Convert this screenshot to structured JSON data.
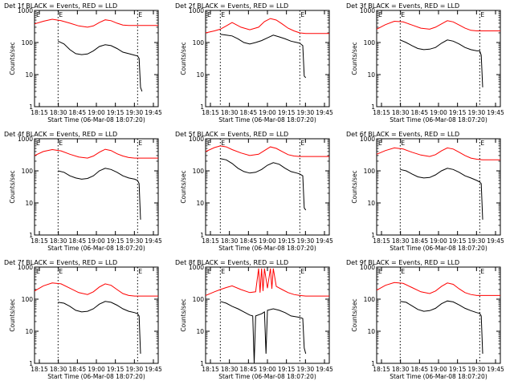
{
  "colors": {
    "events": "#000000",
    "lld": "#ff0000",
    "axis": "#000000",
    "marker": "#000000"
  },
  "chart_data": [
    {
      "type": "line",
      "title": "Det 1f BLACK = Events, RED = LLD",
      "xlabel": "Start Time (06-Mar-08 18:07:20)",
      "ylabel": "Counts/sec",
      "xtick_labels": [
        "18:15",
        "18:30",
        "18:45",
        "19:00",
        "19:15",
        "19:30",
        "19:45"
      ],
      "ytick_labels": [
        "1",
        "10",
        "100",
        "1000"
      ],
      "xlim": [
        0,
        42
      ],
      "ylim": [
        1,
        1000
      ],
      "yscale": "log",
      "marker_label": "E",
      "markers": [
        8,
        35
      ],
      "series": [
        {
          "color": "red",
          "x": [
            0,
            3,
            6,
            9,
            12,
            15,
            18,
            20,
            22,
            24,
            26,
            28,
            30,
            32,
            34,
            36,
            38,
            40,
            42
          ],
          "y": [
            380,
            460,
            530,
            480,
            400,
            330,
            300,
            330,
            420,
            510,
            480,
            400,
            350,
            340,
            340,
            340,
            340,
            340,
            340
          ]
        },
        {
          "color": "black",
          "x": [
            8,
            10,
            12,
            14,
            16,
            18,
            20,
            22,
            24,
            26,
            28,
            30,
            32,
            34,
            35,
            35.5,
            36,
            36.5
          ],
          "y": [
            110,
            90,
            60,
            45,
            42,
            44,
            55,
            75,
            85,
            80,
            65,
            50,
            45,
            40,
            38,
            32,
            4,
            3
          ]
        }
      ]
    },
    {
      "type": "line",
      "title": "Det 2f BLACK = Events, RED = LLD",
      "xlabel": "Start Time (06-Mar-08 18:07:20)",
      "ylabel": "Counts/sec",
      "xtick_labels": [
        "18:15",
        "18:30",
        "18:45",
        "19:00",
        "19:15",
        "19:30",
        "19:45"
      ],
      "ytick_labels": [
        "1",
        "10",
        "100",
        "1000"
      ],
      "xlim": [
        0,
        42
      ],
      "ylim": [
        1,
        1000
      ],
      "yscale": "log",
      "marker_label": "E",
      "markers": [
        5,
        32
      ],
      "series": [
        {
          "color": "red",
          "x": [
            0,
            3,
            5,
            7,
            9,
            12,
            15,
            18,
            20,
            22,
            24,
            26,
            28,
            30,
            32,
            34,
            36,
            38,
            40,
            42
          ],
          "y": [
            200,
            230,
            260,
            330,
            420,
            300,
            250,
            300,
            450,
            560,
            500,
            380,
            280,
            230,
            200,
            190,
            190,
            190,
            190,
            190
          ]
        },
        {
          "color": "black",
          "x": [
            5,
            7,
            9,
            11,
            13,
            15,
            17,
            19,
            21,
            23,
            25,
            27,
            29,
            31,
            32,
            33,
            33.5,
            34
          ],
          "y": [
            180,
            170,
            160,
            130,
            100,
            90,
            100,
            115,
            140,
            170,
            150,
            130,
            110,
            100,
            95,
            80,
            9,
            8
          ]
        }
      ]
    },
    {
      "type": "line",
      "title": "Det 3f BLACK = Events, RED = LLD",
      "xlabel": "Start Time (06-Mar-08 18:07:20)",
      "ylabel": "Counts/sec",
      "xtick_labels": [
        "18:15",
        "18:30",
        "18:45",
        "19:00",
        "19:15",
        "19:30",
        "19:45"
      ],
      "ytick_labels": [
        "1",
        "10",
        "100",
        "1000"
      ],
      "xlim": [
        0,
        42
      ],
      "ylim": [
        1,
        1000
      ],
      "yscale": "log",
      "marker_label": "E",
      "markers": [
        8,
        35
      ],
      "series": [
        {
          "color": "red",
          "x": [
            0,
            3,
            6,
            9,
            12,
            15,
            18,
            20,
            22,
            24,
            26,
            28,
            30,
            32,
            34,
            36,
            38,
            40,
            42
          ],
          "y": [
            260,
            360,
            460,
            440,
            350,
            280,
            260,
            300,
            380,
            480,
            440,
            350,
            280,
            240,
            230,
            230,
            230,
            230,
            230
          ]
        },
        {
          "color": "black",
          "x": [
            8,
            10,
            12,
            14,
            16,
            18,
            20,
            22,
            24,
            26,
            28,
            30,
            32,
            34,
            35,
            35.5,
            36
          ],
          "y": [
            120,
            100,
            80,
            65,
            60,
            62,
            70,
            95,
            120,
            110,
            90,
            70,
            60,
            55,
            55,
            40,
            4
          ]
        }
      ]
    },
    {
      "type": "line",
      "title": "Det 4f BLACK = Events, RED = LLD",
      "xlabel": "Start Time (06-Mar-08 18:07:20)",
      "ylabel": "Counts/sec",
      "xtick_labels": [
        "18:15",
        "18:30",
        "18:45",
        "19:00",
        "19:15",
        "19:30",
        "19:45"
      ],
      "ytick_labels": [
        "1",
        "10",
        "100",
        "1000"
      ],
      "xlim": [
        0,
        42
      ],
      "ylim": [
        1,
        1000
      ],
      "yscale": "log",
      "marker_label": "E",
      "markers": [
        8,
        35
      ],
      "series": [
        {
          "color": "red",
          "x": [
            0,
            3,
            6,
            9,
            12,
            15,
            18,
            20,
            22,
            24,
            26,
            28,
            30,
            32,
            34,
            36,
            38,
            40,
            42
          ],
          "y": [
            300,
            400,
            460,
            420,
            330,
            270,
            250,
            290,
            380,
            470,
            430,
            340,
            290,
            260,
            250,
            250,
            250,
            250,
            250
          ]
        },
        {
          "color": "black",
          "x": [
            8,
            10,
            12,
            14,
            16,
            18,
            20,
            22,
            24,
            26,
            28,
            30,
            32,
            34,
            35,
            35.5,
            36
          ],
          "y": [
            100,
            90,
            70,
            60,
            55,
            58,
            70,
            100,
            120,
            110,
            90,
            70,
            60,
            55,
            50,
            40,
            3
          ]
        }
      ]
    },
    {
      "type": "line",
      "title": "Det 5f BLACK = Events, RED = LLD",
      "xlabel": "Start Time (06-Mar-08 18:07:20)",
      "ylabel": "Counts/sec",
      "xtick_labels": [
        "18:15",
        "18:30",
        "18:45",
        "19:00",
        "19:15",
        "19:30",
        "19:45"
      ],
      "ytick_labels": [
        "1",
        "10",
        "100",
        "1000"
      ],
      "xlim": [
        0,
        42
      ],
      "ylim": [
        1,
        1000
      ],
      "yscale": "log",
      "marker_label": "E",
      "markers": [
        5,
        32
      ],
      "series": [
        {
          "color": "red",
          "x": [
            0,
            3,
            5,
            7,
            9,
            12,
            15,
            18,
            20,
            22,
            24,
            26,
            28,
            30,
            32,
            34,
            36,
            38,
            40,
            42
          ],
          "y": [
            400,
            530,
            600,
            560,
            460,
            360,
            300,
            330,
            430,
            560,
            500,
            400,
            320,
            290,
            280,
            280,
            280,
            280,
            280,
            280
          ]
        },
        {
          "color": "black",
          "x": [
            5,
            7,
            9,
            11,
            13,
            15,
            17,
            19,
            21,
            23,
            25,
            27,
            29,
            31,
            32,
            33,
            33.5,
            34
          ],
          "y": [
            240,
            220,
            170,
            120,
            95,
            85,
            90,
            110,
            150,
            180,
            160,
            120,
            95,
            85,
            80,
            70,
            7,
            6
          ]
        }
      ]
    },
    {
      "type": "line",
      "title": "Det 6f BLACK = Events, RED = LLD",
      "xlabel": "Start Time (06-Mar-08 18:07:20)",
      "ylabel": "Counts/sec",
      "xtick_labels": [
        "18:15",
        "18:30",
        "18:45",
        "19:00",
        "19:15",
        "19:30",
        "19:45"
      ],
      "ytick_labels": [
        "1",
        "10",
        "100",
        "1000"
      ],
      "xlim": [
        0,
        42
      ],
      "ylim": [
        1,
        1000
      ],
      "yscale": "log",
      "marker_label": "E",
      "markers": [
        8,
        35
      ],
      "series": [
        {
          "color": "red",
          "x": [
            0,
            3,
            6,
            9,
            12,
            15,
            18,
            20,
            22,
            24,
            26,
            28,
            30,
            32,
            34,
            36,
            38,
            40,
            42
          ],
          "y": [
            330,
            430,
            520,
            480,
            380,
            310,
            280,
            320,
            420,
            520,
            480,
            380,
            300,
            250,
            230,
            220,
            220,
            220,
            220
          ]
        },
        {
          "color": "black",
          "x": [
            8,
            10,
            12,
            14,
            16,
            18,
            20,
            22,
            24,
            26,
            28,
            30,
            32,
            34,
            35,
            35.5,
            36
          ],
          "y": [
            110,
            100,
            80,
            65,
            60,
            62,
            75,
            100,
            120,
            110,
            90,
            70,
            60,
            50,
            45,
            40,
            3
          ]
        }
      ]
    },
    {
      "type": "line",
      "title": "Det 7f BLACK = Events, RED = LLD",
      "xlabel": "Start Time (06-Mar-08 18:07:20)",
      "ylabel": "Counts/sec",
      "xtick_labels": [
        "18:15",
        "18:30",
        "18:45",
        "19:00",
        "19:15",
        "19:30",
        "19:45"
      ],
      "ytick_labels": [
        "1",
        "10",
        "100",
        "1000"
      ],
      "xlim": [
        0,
        42
      ],
      "ylim": [
        1,
        1000
      ],
      "yscale": "log",
      "marker_label": "E",
      "markers": [
        8,
        35
      ],
      "series": [
        {
          "color": "red",
          "x": [
            0,
            3,
            6,
            9,
            12,
            15,
            18,
            20,
            22,
            24,
            26,
            28,
            30,
            32,
            34,
            36,
            38,
            40,
            42
          ],
          "y": [
            180,
            260,
            320,
            300,
            220,
            160,
            140,
            170,
            240,
            300,
            270,
            200,
            150,
            130,
            125,
            125,
            125,
            125,
            125
          ]
        },
        {
          "color": "black",
          "x": [
            8,
            10,
            12,
            14,
            16,
            18,
            20,
            22,
            24,
            26,
            28,
            30,
            32,
            34,
            35,
            35.5,
            36
          ],
          "y": [
            80,
            75,
            60,
            45,
            40,
            42,
            50,
            70,
            85,
            80,
            65,
            50,
            42,
            38,
            35,
            30,
            2
          ]
        }
      ]
    },
    {
      "type": "line",
      "title": "Det 8f BLACK = Events, RED = LLD",
      "xlabel": "Start Time (06-Mar-08 18:07:20)",
      "ylabel": "Counts/sec",
      "xtick_labels": [
        "18:15",
        "18:30",
        "18:45",
        "19:00",
        "19:15",
        "19:30",
        "19:45"
      ],
      "ytick_labels": [
        "1",
        "10",
        "100",
        "1000"
      ],
      "xlim": [
        0,
        42
      ],
      "ylim": [
        1,
        1000
      ],
      "yscale": "log",
      "marker_label": "E",
      "markers": [
        5,
        32
      ],
      "series": [
        {
          "color": "red",
          "x": [
            0,
            3,
            5,
            7,
            9,
            12,
            15,
            17,
            18,
            18.5,
            19,
            19.5,
            20,
            21,
            22,
            22.5,
            23,
            24,
            26,
            28,
            30,
            32,
            34,
            36,
            38,
            40,
            42
          ],
          "y": [
            130,
            170,
            200,
            230,
            260,
            200,
            160,
            170,
            900,
            160,
            900,
            180,
            900,
            220,
            900,
            210,
            900,
            250,
            200,
            160,
            140,
            130,
            125,
            125,
            125,
            125,
            125
          ]
        },
        {
          "color": "black",
          "x": [
            5,
            7,
            9,
            11,
            13,
            15,
            16,
            16.5,
            17,
            19,
            20,
            20.5,
            21,
            23,
            25,
            27,
            29,
            31,
            32,
            33,
            33.5,
            34
          ],
          "y": [
            85,
            75,
            60,
            50,
            40,
            32,
            30,
            1,
            30,
            35,
            40,
            2,
            45,
            50,
            45,
            38,
            30,
            28,
            27,
            25,
            3,
            2
          ]
        }
      ]
    },
    {
      "type": "line",
      "title": "Det 9f BLACK = Events, RED = LLD",
      "xlabel": "Start Time (06-Mar-08 18:07:20)",
      "ylabel": "Counts/sec",
      "xtick_labels": [
        "18:15",
        "18:30",
        "18:45",
        "19:00",
        "19:15",
        "19:30",
        "19:45"
      ],
      "ytick_labels": [
        "1",
        "10",
        "100",
        "1000"
      ],
      "xlim": [
        0,
        42
      ],
      "ylim": [
        1,
        1000
      ],
      "yscale": "log",
      "marker_label": "E",
      "markers": [
        8,
        35
      ],
      "series": [
        {
          "color": "red",
          "x": [
            0,
            3,
            6,
            9,
            12,
            15,
            18,
            20,
            22,
            24,
            26,
            28,
            30,
            32,
            34,
            36,
            38,
            40,
            42
          ],
          "y": [
            190,
            270,
            330,
            310,
            230,
            170,
            150,
            180,
            250,
            320,
            290,
            210,
            160,
            140,
            130,
            130,
            130,
            130,
            130
          ]
        },
        {
          "color": "black",
          "x": [
            8,
            10,
            12,
            14,
            16,
            18,
            20,
            22,
            24,
            26,
            28,
            30,
            32,
            34,
            35,
            35.5,
            36
          ],
          "y": [
            85,
            80,
            62,
            48,
            42,
            44,
            52,
            72,
            88,
            82,
            66,
            52,
            44,
            38,
            36,
            30,
            2
          ]
        }
      ]
    }
  ]
}
